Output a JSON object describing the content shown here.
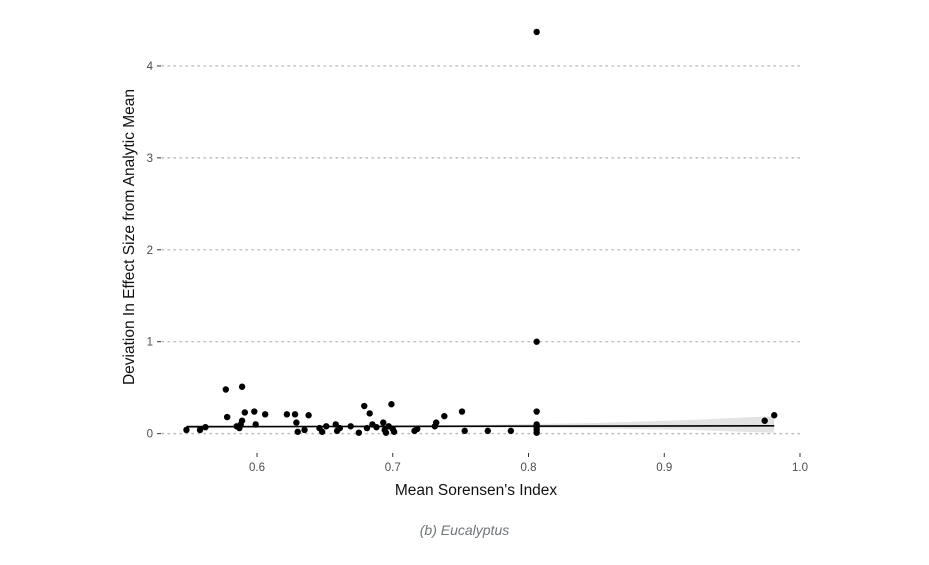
{
  "caption": "(b) Eucalyptus",
  "chart_data": {
    "type": "scatter",
    "title": "",
    "xlabel": "Mean Sorensen's Index",
    "ylabel": "Deviation In Effect Size from Analytic Mean",
    "xlim": [
      0.53,
      1.0
    ],
    "ylim": [
      -0.2,
      4.5
    ],
    "xticks": [
      0.6,
      0.7,
      0.8,
      0.9,
      1.0
    ],
    "xtick_labels": [
      "0.6",
      "0.7",
      "0.8",
      "0.9",
      "1.0"
    ],
    "yticks": [
      0,
      1,
      2,
      3,
      4
    ],
    "ytick_labels": [
      "0",
      "1",
      "2",
      "3",
      "4"
    ],
    "grid": "horizontal dotted major gridlines",
    "colors": {
      "points": "#000000",
      "fit_line": "#000000",
      "confidence_band": "#e0e0e0",
      "gridline": "#bdbdbd"
    },
    "points": [
      [
        0.548,
        0.04
      ],
      [
        0.558,
        0.04
      ],
      [
        0.562,
        0.07
      ],
      [
        0.577,
        0.48
      ],
      [
        0.578,
        0.18
      ],
      [
        0.585,
        0.08
      ],
      [
        0.587,
        0.06
      ],
      [
        0.588,
        0.1
      ],
      [
        0.589,
        0.51
      ],
      [
        0.589,
        0.14
      ],
      [
        0.591,
        0.23
      ],
      [
        0.598,
        0.24
      ],
      [
        0.599,
        0.1
      ],
      [
        0.606,
        0.21
      ],
      [
        0.622,
        0.21
      ],
      [
        0.628,
        0.21
      ],
      [
        0.629,
        0.12
      ],
      [
        0.63,
        0.02
      ],
      [
        0.635,
        0.04
      ],
      [
        0.638,
        0.2
      ],
      [
        0.646,
        0.06
      ],
      [
        0.648,
        0.02
      ],
      [
        0.651,
        0.08
      ],
      [
        0.658,
        0.1
      ],
      [
        0.659,
        0.03
      ],
      [
        0.661,
        0.06
      ],
      [
        0.669,
        0.08
      ],
      [
        0.675,
        0.01
      ],
      [
        0.679,
        0.3
      ],
      [
        0.681,
        0.06
      ],
      [
        0.683,
        0.22
      ],
      [
        0.685,
        0.1
      ],
      [
        0.688,
        0.07
      ],
      [
        0.693,
        0.12
      ],
      [
        0.694,
        0.04
      ],
      [
        0.695,
        0.01
      ],
      [
        0.697,
        0.08
      ],
      [
        0.699,
        0.32
      ],
      [
        0.7,
        0.05
      ],
      [
        0.701,
        0.02
      ],
      [
        0.716,
        0.03
      ],
      [
        0.718,
        0.05
      ],
      [
        0.731,
        0.08
      ],
      [
        0.732,
        0.12
      ],
      [
        0.738,
        0.19
      ],
      [
        0.751,
        0.24
      ],
      [
        0.753,
        0.03
      ],
      [
        0.77,
        0.03
      ],
      [
        0.787,
        0.03
      ],
      [
        0.806,
        4.37
      ],
      [
        0.806,
        1.0
      ],
      [
        0.806,
        0.24
      ],
      [
        0.806,
        0.1
      ],
      [
        0.806,
        0.07
      ],
      [
        0.806,
        0.04
      ],
      [
        0.806,
        0.01
      ],
      [
        0.974,
        0.14
      ],
      [
        0.981,
        0.2
      ]
    ],
    "fit": {
      "method": "linear regression",
      "line": [
        [
          0.548,
          0.075
        ],
        [
          0.981,
          0.085
        ]
      ],
      "band": [
        [
          0.548,
          0.055,
          0.095
        ],
        [
          0.65,
          0.068,
          0.088
        ],
        [
          0.75,
          0.068,
          0.092
        ],
        [
          0.85,
          0.055,
          0.115
        ],
        [
          0.92,
          0.04,
          0.15
        ],
        [
          0.981,
          0.01,
          0.19
        ]
      ]
    }
  }
}
